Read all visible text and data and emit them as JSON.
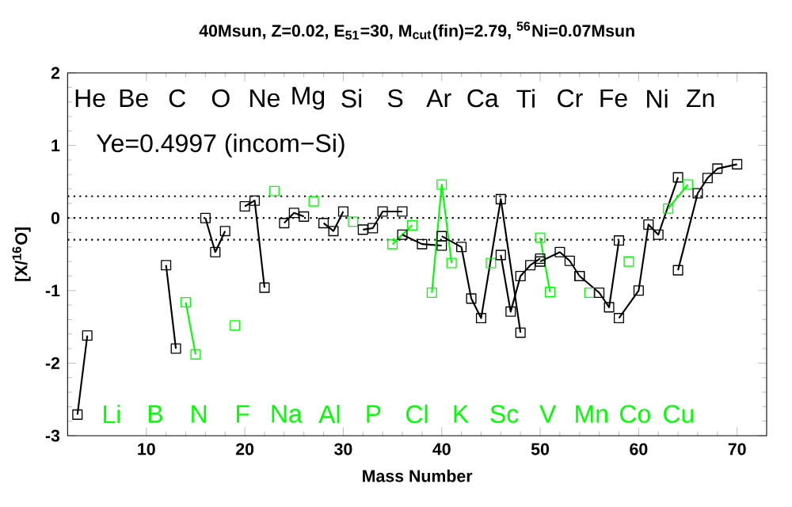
{
  "chart_data": {
    "type": "line",
    "title": "40Msun, Z=0.02, E$_{51}$=30, M$_{cut}$(fin)=2.79, $^{56}$Ni=0.07Msun",
    "xlabel": "Mass Number",
    "ylabel": "[X/$^{16}$O]",
    "annotations": [
      "Ye=0.4997 (incom−Si)",
      "He",
      "Li",
      "Be",
      "B",
      "C",
      "N",
      "O",
      "F",
      "Ne",
      "Na",
      "Mg",
      "Al",
      "Si",
      "P",
      "S",
      "Cl",
      "Ar",
      "K",
      "Ca",
      "Sc",
      "Ti",
      "V",
      "Cr",
      "Mn",
      "Fe",
      "Co",
      "Ni",
      "Cu",
      "Zn"
    ],
    "xlim": [
      2,
      73
    ],
    "ylim": [
      -3,
      2
    ],
    "xticks": [
      10,
      20,
      30,
      40,
      50,
      60,
      70
    ],
    "yticks": [
      -3,
      -2,
      -1,
      0,
      1,
      2
    ],
    "marker": "square",
    "line_style": "solid",
    "ref_lines": [
      {
        "axis": "y",
        "value": 0.3,
        "line_style": "dotted",
        "color": "#000000"
      },
      {
        "axis": "y",
        "value": 0,
        "line_style": "dotted",
        "color": "#000000"
      },
      {
        "axis": "y",
        "value": -0.3,
        "line_style": "dotted",
        "color": "#000000"
      }
    ],
    "series": [
      {
        "color": "#000000",
        "x": [
          3,
          4
        ],
        "values": [
          -2.71,
          -1.62
        ]
      },
      {
        "color": "#000000",
        "x": [
          12,
          13
        ],
        "values": [
          -0.65,
          -1.8
        ]
      },
      {
        "color": "#00ff00",
        "x": [
          14,
          15
        ],
        "values": [
          -1.16,
          -1.88
        ]
      },
      {
        "color": "#000000",
        "x": [
          16,
          17,
          18
        ],
        "values": [
          0.0,
          -0.47,
          -0.18
        ]
      },
      {
        "color": "#00ff00",
        "x": [
          19
        ],
        "values": [
          -1.48
        ]
      },
      {
        "color": "#000000",
        "x": [
          20,
          21,
          22
        ],
        "values": [
          0.16,
          0.24,
          -0.96
        ]
      },
      {
        "color": "#00ff00",
        "x": [
          23
        ],
        "values": [
          0.37
        ]
      },
      {
        "color": "#000000",
        "x": [
          24,
          25,
          26
        ],
        "values": [
          -0.07,
          0.07,
          0.02
        ]
      },
      {
        "color": "#00ff00",
        "x": [
          27
        ],
        "values": [
          0.23
        ]
      },
      {
        "color": "#000000",
        "x": [
          28,
          29,
          30
        ],
        "values": [
          -0.07,
          -0.18,
          0.09
        ]
      },
      {
        "color": "#00ff00",
        "x": [
          31
        ],
        "values": [
          -0.05
        ]
      },
      {
        "color": "#000000",
        "x": [
          32,
          33,
          34,
          36
        ],
        "values": [
          -0.16,
          -0.14,
          0.09,
          0.09
        ]
      },
      {
        "color": "#00ff00",
        "x": [
          35,
          37
        ],
        "values": [
          -0.36,
          -0.1
        ]
      },
      {
        "color": "#000000",
        "x": [
          36,
          38,
          40
        ],
        "values": [
          -0.23,
          -0.36,
          -0.38
        ]
      },
      {
        "color": "#00ff00",
        "x": [
          39,
          40,
          41
        ],
        "values": [
          -1.03,
          0.46,
          -0.62
        ]
      },
      {
        "color": "#000000",
        "x": [
          40,
          42,
          43,
          44,
          46,
          48
        ],
        "values": [
          -0.25,
          -0.4,
          -1.11,
          -1.38,
          0.26,
          -1.58
        ]
      },
      {
        "color": "#00ff00",
        "x": [
          45
        ],
        "values": [
          -0.62
        ]
      },
      {
        "color": "#000000",
        "x": [
          46,
          47,
          48,
          49,
          50
        ],
        "values": [
          -0.51,
          -1.29,
          -0.8,
          -0.65,
          -0.56
        ]
      },
      {
        "color": "#00ff00",
        "x": [
          50,
          51
        ],
        "values": [
          -0.27,
          -1.02
        ]
      },
      {
        "color": "#000000",
        "x": [
          50,
          52,
          53,
          54
        ],
        "values": [
          -0.6,
          -0.47,
          -0.59,
          -0.8
        ]
      },
      {
        "color": "#00ff00",
        "x": [
          55
        ],
        "values": [
          -1.03
        ]
      },
      {
        "color": "#000000",
        "x": [
          54,
          56,
          57,
          58
        ],
        "values": [
          -0.8,
          -1.03,
          -1.23,
          -0.31
        ]
      },
      {
        "color": "#00ff00",
        "x": [
          59
        ],
        "values": [
          -0.6
        ]
      },
      {
        "color": "#000000",
        "x": [
          58,
          60,
          61,
          62,
          64
        ],
        "values": [
          -1.38,
          -1.0,
          -0.09,
          -0.23,
          0.56
        ]
      },
      {
        "color": "#00ff00",
        "x": [
          63,
          65
        ],
        "values": [
          0.13,
          0.46
        ]
      },
      {
        "color": "#000000",
        "x": [
          64,
          66,
          67,
          68,
          70
        ],
        "values": [
          -0.72,
          0.34,
          0.55,
          0.68,
          0.74
        ]
      }
    ]
  }
}
